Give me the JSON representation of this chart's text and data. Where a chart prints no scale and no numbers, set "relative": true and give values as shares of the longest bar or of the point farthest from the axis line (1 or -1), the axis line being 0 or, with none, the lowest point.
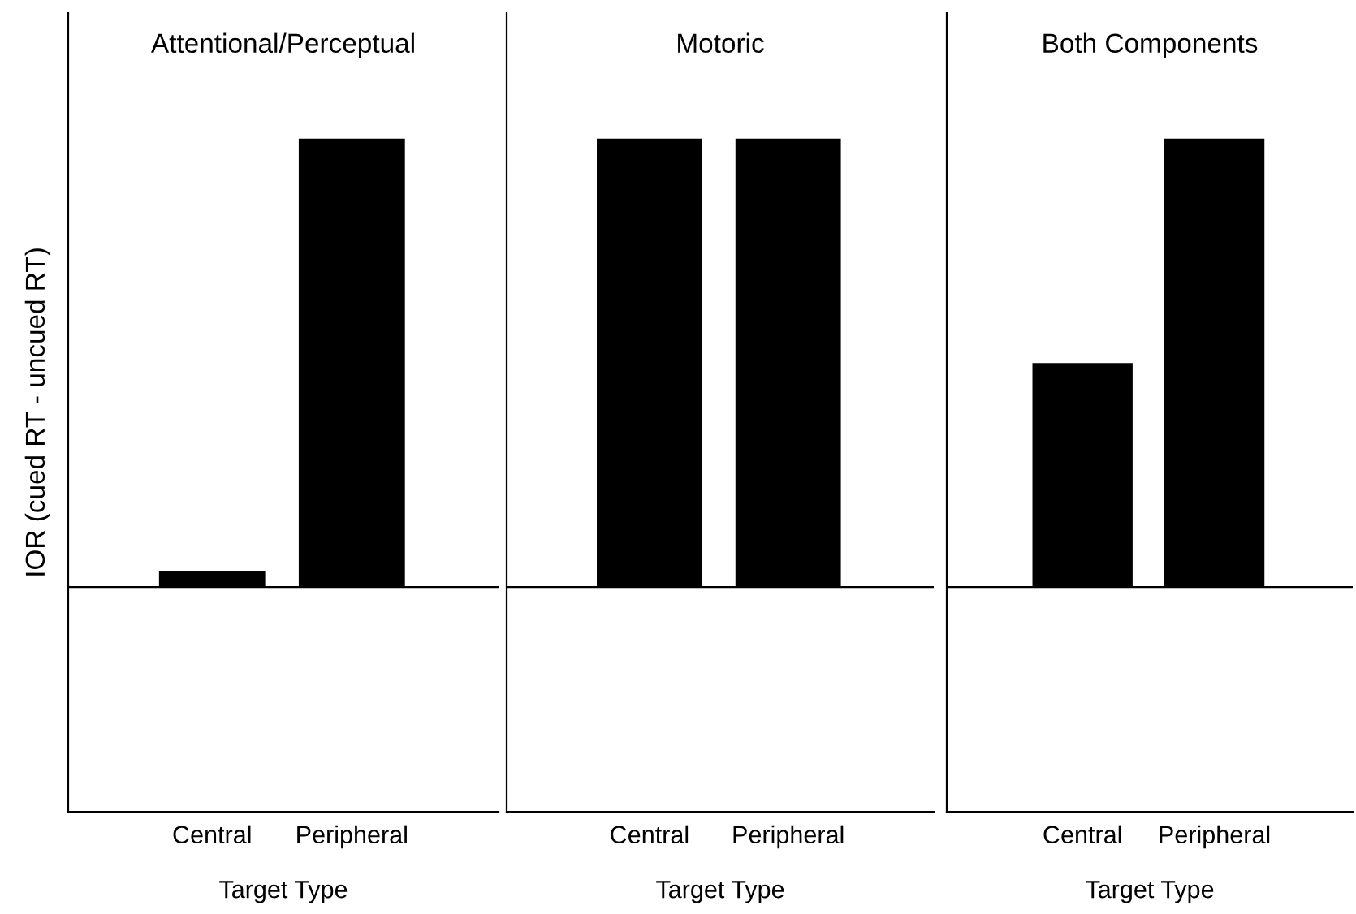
{
  "chart_data": [
    {
      "type": "bar",
      "title": "Attentional/Perceptual",
      "xlabel": "Target Type",
      "ylabel": "IOR (cued RT - uncued RT)",
      "categories": [
        "Central",
        "Peripheral"
      ],
      "relative": true,
      "grid": false,
      "legend": false,
      "series": [
        {
          "color": "#000000",
          "values": [
            0.036,
            1
          ]
        }
      ]
    },
    {
      "type": "bar",
      "title": "Motoric",
      "xlabel": "Target Type",
      "categories": [
        "Central",
        "Peripheral"
      ],
      "relative": true,
      "grid": false,
      "legend": false,
      "series": [
        {
          "color": "#000000",
          "values": [
            1,
            1
          ]
        }
      ]
    },
    {
      "type": "bar",
      "title": "Both Components",
      "xlabel": "Target Type",
      "categories": [
        "Central",
        "Peripheral"
      ],
      "relative": true,
      "grid": false,
      "legend": false,
      "series": [
        {
          "color": "#000000",
          "values": [
            0.5,
            1
          ]
        }
      ]
    }
  ]
}
